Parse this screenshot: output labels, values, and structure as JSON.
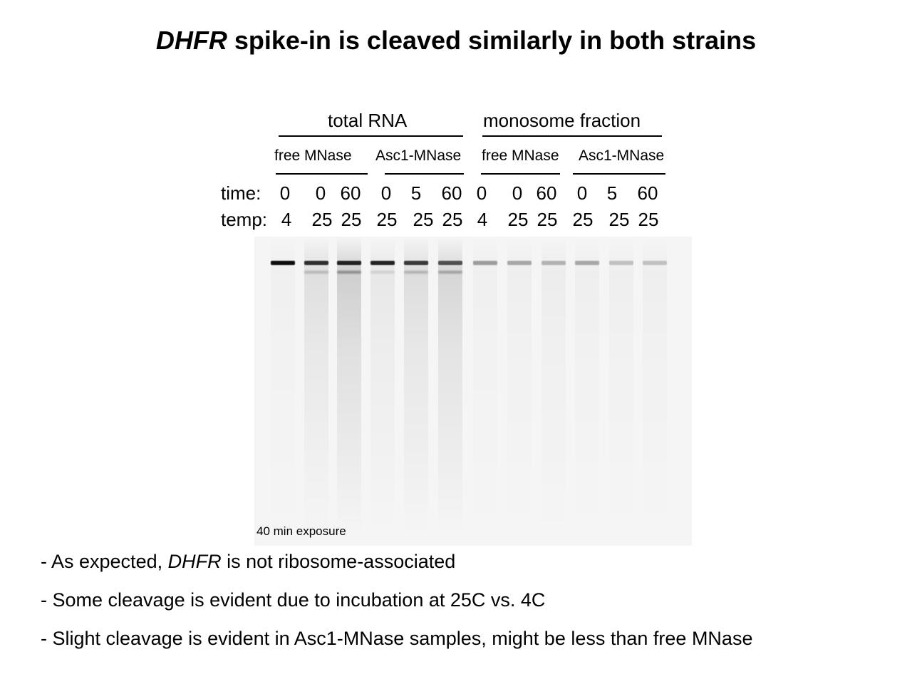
{
  "title": {
    "italic": "DHFR",
    "rest": "spike-in is cleaved similarly in both strains"
  },
  "groups": [
    "total RNA",
    "monosome fraction"
  ],
  "subgroups": [
    "free MNase",
    "Asc1-MNase",
    "free MNase",
    "Asc1-MNase"
  ],
  "row_labels": {
    "time": "time:",
    "temp": "temp:"
  },
  "times": [
    "0",
    "0",
    "60",
    "0",
    "5",
    "60",
    "0",
    "0",
    "60",
    "0",
    "5",
    "60"
  ],
  "temps": [
    "4",
    "25",
    "25",
    "25",
    "25",
    "25",
    "4",
    "25",
    "25",
    "25",
    "25",
    "25"
  ],
  "gel": {
    "exposure_label": "40 min exposure",
    "band_intensity": [
      0.95,
      0.8,
      0.85,
      0.85,
      0.75,
      0.65,
      0.35,
      0.3,
      0.25,
      0.3,
      0.2,
      0.2
    ],
    "smear_intensity": [
      0.05,
      0.2,
      0.35,
      0.12,
      0.22,
      0.28,
      0.05,
      0.06,
      0.08,
      0.06,
      0.06,
      0.06
    ]
  },
  "bullets": [
    {
      "pre": "- As expected, ",
      "italic": "DHFR",
      "post": " is not ribosome-associated"
    },
    {
      "text": "- Some cleavage is evident due to incubation at 25C vs. 4C"
    },
    {
      "text": "- Slight cleavage is evident in Asc1-MNase samples, might be less than free MNase"
    }
  ]
}
